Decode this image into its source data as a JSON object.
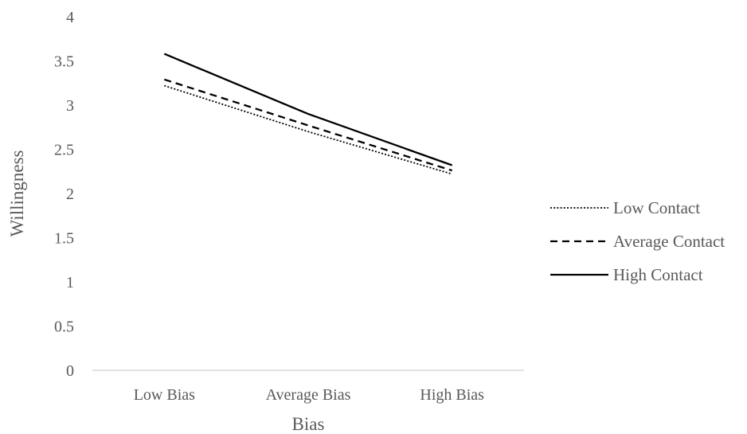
{
  "chart_data": {
    "type": "line",
    "title": "",
    "xlabel": "Bias",
    "ylabel": "Willingness",
    "categories": [
      "Low Bias",
      "Average Bias",
      "High Bias"
    ],
    "ylim": [
      0,
      4
    ],
    "yticks": [
      "0",
      "0.5",
      "1",
      "1.5",
      "2",
      "2.5",
      "3",
      "3.5",
      "4"
    ],
    "grid": false,
    "legend_position": "right",
    "series": [
      {
        "name": "Low Contact",
        "style": "dotted",
        "color": "#000000",
        "values": [
          3.22,
          2.7,
          2.22
        ]
      },
      {
        "name": "Average Contact",
        "style": "dashed",
        "color": "#000000",
        "values": [
          3.29,
          2.77,
          2.26
        ]
      },
      {
        "name": "High Contact",
        "style": "solid",
        "color": "#000000",
        "values": [
          3.58,
          2.9,
          2.32
        ]
      }
    ],
    "colors": {
      "axis": "#d9d9d9",
      "text": "#595959",
      "line": "#000000"
    }
  }
}
